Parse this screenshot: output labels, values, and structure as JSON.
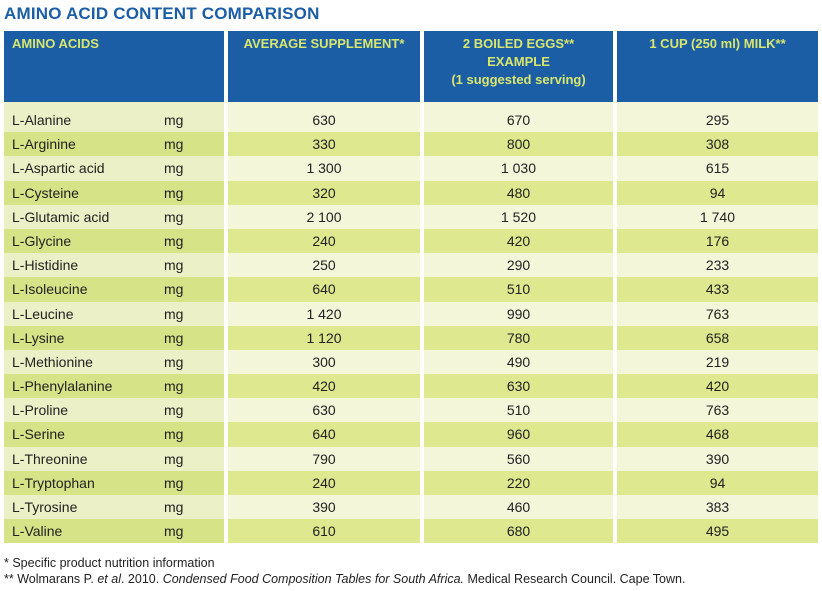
{
  "title": "AMINO ACID CONTENT COMPARISON",
  "headers": {
    "amino_acids": "AMINO ACIDS",
    "supplement": "AVERAGE SUPPLEMENT*",
    "eggs_line1": "2 BOILED EGGS**",
    "eggs_line2": "EXAMPLE",
    "eggs_line3": "(1 suggested serving)",
    "milk": "1 CUP (250 ml) MILK**"
  },
  "unit": "mg",
  "rows": [
    {
      "name": "L-Alanine",
      "unit": "mg",
      "supplement": "630",
      "eggs": "670",
      "milk": "295"
    },
    {
      "name": "L-Arginine",
      "unit": "mg",
      "supplement": "330",
      "eggs": "800",
      "milk": "308"
    },
    {
      "name": "L-Aspartic acid",
      "unit": "mg",
      "supplement": "1 300",
      "eggs": "1 030",
      "milk": "615"
    },
    {
      "name": "L-Cysteine",
      "unit": "mg",
      "supplement": "320",
      "eggs": "480",
      "milk": "94"
    },
    {
      "name": "L-Glutamic acid",
      "unit": "mg",
      "supplement": "2 100",
      "eggs": "1 520",
      "milk": "1 740"
    },
    {
      "name": "L-Glycine",
      "unit": "mg",
      "supplement": "240",
      "eggs": "420",
      "milk": "176"
    },
    {
      "name": "L-Histidine",
      "unit": "mg",
      "supplement": "250",
      "eggs": "290",
      "milk": "233"
    },
    {
      "name": "L-Isoleucine",
      "unit": "mg",
      "supplement": "640",
      "eggs": "510",
      "milk": "433"
    },
    {
      "name": "L-Leucine",
      "unit": "mg",
      "supplement": "1 420",
      "eggs": "990",
      "milk": "763"
    },
    {
      "name": "L-Lysine",
      "unit": "mg",
      "supplement": "1 120",
      "eggs": "780",
      "milk": "658"
    },
    {
      "name": "L-Methionine",
      "unit": "mg",
      "supplement": "300",
      "eggs": "490",
      "milk": "219"
    },
    {
      "name": "L-Phenylalanine",
      "unit": "mg",
      "supplement": "420",
      "eggs": "630",
      "milk": "420"
    },
    {
      "name": "L-Proline",
      "unit": "mg",
      "supplement": "630",
      "eggs": "510",
      "milk": "763"
    },
    {
      "name": "L-Serine",
      "unit": "mg",
      "supplement": "640",
      "eggs": "960",
      "milk": "468"
    },
    {
      "name": "L-Threonine",
      "unit": "mg",
      "supplement": "790",
      "eggs": "560",
      "milk": "390"
    },
    {
      "name": "L-Tryptophan",
      "unit": "mg",
      "supplement": "240",
      "eggs": "220",
      "milk": "94"
    },
    {
      "name": "L-Tyrosine",
      "unit": "mg",
      "supplement": "390",
      "eggs": "460",
      "milk": "383"
    },
    {
      "name": "L-Valine",
      "unit": "mg",
      "supplement": "610",
      "eggs": "680",
      "milk": "495"
    }
  ],
  "footnotes": {
    "note1": "* Specific product nutrition information",
    "note2_prefix": "** Wolmarans P. ",
    "note2_etal": "et al",
    "note2_mid": ". 2010. ",
    "note2_title": "Condensed Food Composition Tables for South Africa.",
    "note2_suffix": " Medical Research Council. Cape Town."
  },
  "colors": {
    "header_bg": "#1b5ea6",
    "header_text": "#d9e66d",
    "row_light": "#f3f6d9",
    "row_dark": "#dde88f"
  }
}
